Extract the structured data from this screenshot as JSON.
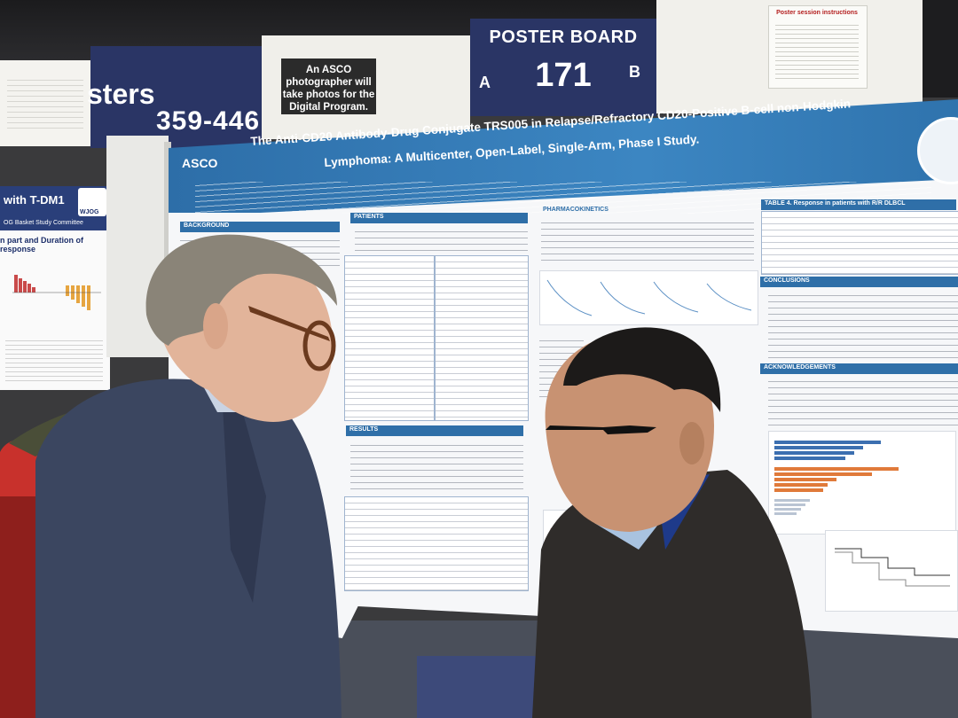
{
  "scene": {
    "description_colors": {
      "banner_navy": "#2a3565",
      "poster_blue": "#2f6fa8",
      "backpack_red": "#d72a2a"
    }
  },
  "signage": {
    "posters_word": "sters",
    "posters_range": "359-446",
    "photographer_notice": "An ASCO photographer will take photos for the Digital Program.",
    "board_title": "POSTER BOARD",
    "board_number": "171",
    "board_side_a": "A",
    "board_side_b": "B",
    "right_notice_title": "Poster session instructions"
  },
  "left_poster": {
    "title": "with T-DM1",
    "subtitle": "OG Basket Study Committee",
    "logo_text": "WJOG",
    "section": "n part and Duration of response"
  },
  "main_poster": {
    "org": "ASCO",
    "title_line_1": "The Anti-CD20 Antibody-Drug Conjugate TRS005 in Relapse/Refractory CD20-Positive B-cell non-Hodgkin",
    "title_line_2": "Lymphoma: A Multicenter, Open-Label, Single-Arm, Phase I Study.",
    "sections": {
      "background": "BACKGROUND",
      "patients": "PATIENTS",
      "pharmacokinetics": "PHARMACOKINETICS",
      "table4": "TABLE 4. Response in patients with R/R DLBCL",
      "conclusions": "CONCLUSIONS",
      "acknowledgements": "ACKNOWLEDGEMENTS",
      "results": "RESULTS"
    }
  }
}
